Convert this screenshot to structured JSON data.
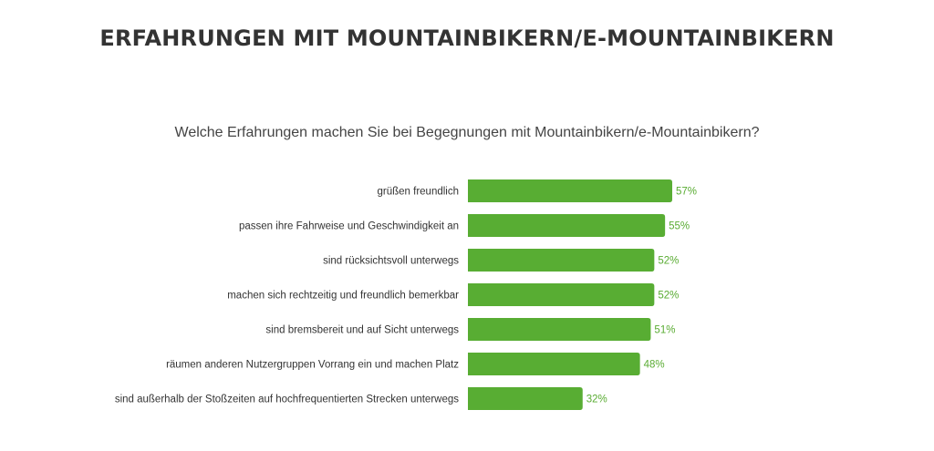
{
  "header": {
    "title": "ERFAHRUNGEN MIT MOUNTAINBIKERN/E-MOUNTAINBIKERN"
  },
  "chart_data": {
    "type": "bar",
    "orientation": "horizontal",
    "title": "Welche Erfahrungen machen Sie bei Begegnungen mit Mountainbikern/e-Mountainbikern?",
    "categories": [
      "grüßen freundlich",
      "passen ihre Fahrweise und Geschwindigkeit an",
      "sind rücksichtsvoll unterwegs",
      "machen sich rechtzeitig und freundlich bemerkbar",
      "sind bremsbereit und auf Sicht unterwegs",
      "räumen anderen Nutzergruppen Vorrang ein und machen Platz",
      "sind außerhalb der Stoßzeiten auf hochfrequentierten Strecken unterwegs"
    ],
    "values": [
      57,
      55,
      52,
      52,
      51,
      48,
      32
    ],
    "value_labels": [
      "57%",
      "55%",
      "52%",
      "52%",
      "51%",
      "48%",
      "32%"
    ],
    "unit": "%",
    "xlim": [
      0,
      100
    ],
    "grid": false,
    "bar_color": "#58ad33",
    "label_color": "#5aac33"
  }
}
